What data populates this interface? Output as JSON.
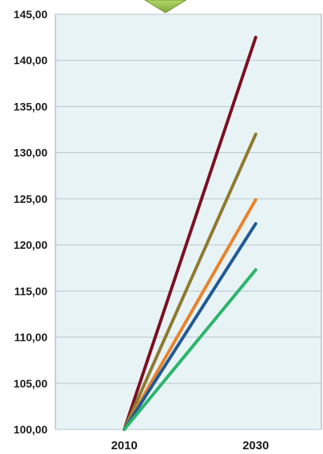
{
  "chart_data": {
    "type": "line",
    "title": "",
    "xlabel": "",
    "ylabel": "",
    "categories": [
      "2010",
      "2030"
    ],
    "ylim": [
      100,
      145
    ],
    "yticks": [
      "100,00",
      "105,00",
      "110,00",
      "115,00",
      "120,00",
      "125,00",
      "130,00",
      "135,00",
      "140,00",
      "145,00"
    ],
    "grid": true,
    "legend": "none",
    "series": [
      {
        "values": [
          100,
          142.5
        ],
        "color": "#7b1020"
      },
      {
        "values": [
          100,
          132.0
        ],
        "color": "#8e7a2e"
      },
      {
        "values": [
          100,
          124.9
        ],
        "color": "#e8842c"
      },
      {
        "values": [
          100,
          122.3
        ],
        "color": "#1f5a96"
      },
      {
        "values": [
          100,
          117.3
        ],
        "color": "#2bb56a"
      }
    ],
    "colors": {
      "plot_background": "#e8f3f6",
      "grid": "#b9c6cc",
      "indicator": "#9bc24a"
    }
  }
}
